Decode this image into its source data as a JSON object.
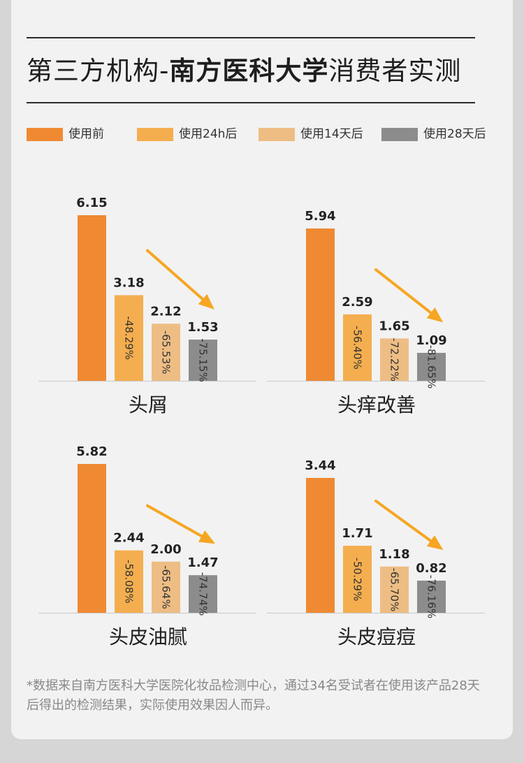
{
  "title": {
    "part1": "第三方机构-",
    "part2": "南方医科大学",
    "part3": "消费者实测"
  },
  "legend": [
    {
      "label": "使用前",
      "color": "#ef8a32"
    },
    {
      "label": "使用24h后",
      "color": "#f4ae4f"
    },
    {
      "label": "使用14天后",
      "color": "#edbd84"
    },
    {
      "label": "使用28天后",
      "color": "#8c8c8c"
    }
  ],
  "arrow_color": "#f6a623",
  "chart_data": [
    {
      "type": "bar",
      "title": "头屑",
      "categories": [
        "使用前",
        "使用24h后",
        "使用14天后",
        "使用28天后"
      ],
      "values": [
        6.15,
        3.18,
        2.12,
        1.53
      ],
      "value_labels": [
        "6.15",
        "3.18",
        "2.12",
        "1.53"
      ],
      "change_labels": [
        "",
        "-48.29%",
        "-65.53%",
        "-75.15%"
      ],
      "ylim": [
        0,
        6.15
      ]
    },
    {
      "type": "bar",
      "title": "头痒改善",
      "categories": [
        "使用前",
        "使用24h后",
        "使用14天后",
        "使用28天后"
      ],
      "values": [
        5.94,
        2.59,
        1.65,
        1.09
      ],
      "value_labels": [
        "5.94",
        "2.59",
        "1.65",
        "1.09"
      ],
      "change_labels": [
        "",
        "-56.40%",
        "-72.22%",
        "-81.65%"
      ],
      "ylim": [
        0,
        5.94
      ]
    },
    {
      "type": "bar",
      "title": "头皮油腻",
      "categories": [
        "使用前",
        "使用24h后",
        "使用14天后",
        "使用28天后"
      ],
      "values": [
        5.82,
        2.44,
        2.0,
        1.47
      ],
      "value_labels": [
        "5.82",
        "2.44",
        "2.00",
        "1.47"
      ],
      "change_labels": [
        "",
        "-58.08%",
        "-65.64%",
        "-74.74%"
      ],
      "ylim": [
        0,
        5.82
      ]
    },
    {
      "type": "bar",
      "title": "头皮痘痘",
      "categories": [
        "使用前",
        "使用24h后",
        "使用14天后",
        "使用28天后"
      ],
      "values": [
        3.44,
        1.71,
        1.18,
        0.82
      ],
      "value_labels": [
        "3.44",
        "1.71",
        "1.18",
        "0.82"
      ],
      "change_labels": [
        "",
        "-50.29%",
        "-65.70%",
        "-76.16%"
      ],
      "ylim": [
        0,
        3.44
      ]
    }
  ],
  "footnote": "*数据来自南方医科大学医院化妆品检测中心，通过34名受试者在使用该产品28天后得出的检测结果，实际使用效果因人而异。"
}
